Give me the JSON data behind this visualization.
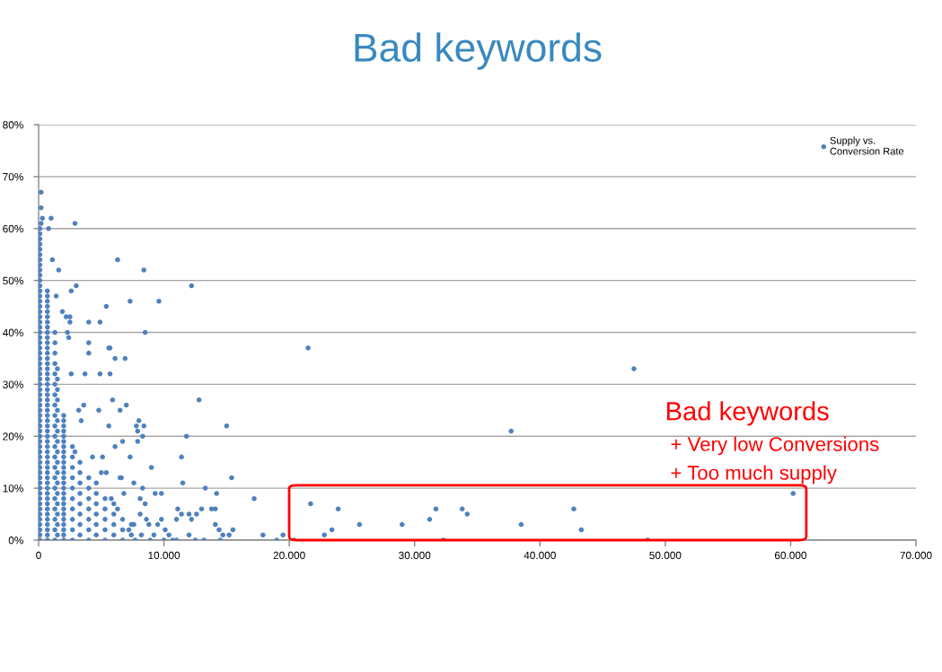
{
  "chart_data": {
    "type": "scatter",
    "title": "Bad keywords",
    "xlim": [
      0,
      70000
    ],
    "xticks": [
      0,
      {
        "value": 10000,
        "label": "10.000"
      },
      {
        "value": 20000,
        "label": "20.000"
      },
      {
        "value": 30000,
        "label": "30.000"
      },
      {
        "value": 40000,
        "label": "40.000"
      },
      {
        "value": 50000,
        "label": "50.000"
      },
      {
        "value": 60000,
        "label": "60.000"
      },
      {
        "value": 70000,
        "label": "70.000"
      }
    ],
    "ylim": [
      0,
      80
    ],
    "yticks": [
      {
        "value": 0,
        "label": "0%"
      },
      {
        "value": 10,
        "label": "10%"
      },
      {
        "value": 20,
        "label": "20%"
      },
      {
        "value": 30,
        "label": "30%"
      },
      {
        "value": 40,
        "label": "40%"
      },
      {
        "value": 50,
        "label": "50%"
      },
      {
        "value": 60,
        "label": "60%"
      },
      {
        "value": 70,
        "label": "70%"
      },
      {
        "value": 80,
        "label": "80%"
      }
    ],
    "grid": "y",
    "legend": "top right",
    "marker": "circle",
    "annotations": [
      "Bad keywords",
      "+ Very low Conversions",
      "+ Too much supply"
    ],
    "series": [
      {
        "name": "Supply vs.\nConversion Rate",
        "color": "#4f81bd",
        "x": [
          100,
          100,
          100,
          100,
          100,
          100,
          100,
          100,
          100,
          100,
          100,
          100,
          100,
          100,
          100,
          100,
          100,
          100,
          100,
          100,
          100,
          100,
          100,
          100,
          100,
          100,
          100,
          100,
          100,
          100,
          100,
          100,
          100,
          100,
          100,
          100,
          100,
          100,
          100,
          100,
          100,
          100,
          100,
          100,
          100,
          100,
          100,
          100,
          100,
          100,
          100,
          100,
          100,
          100,
          100,
          100,
          100,
          100,
          100,
          100,
          100,
          700,
          700,
          700,
          700,
          700,
          700,
          700,
          700,
          700,
          700,
          700,
          700,
          700,
          700,
          700,
          700,
          700,
          700,
          700,
          700,
          700,
          700,
          700,
          700,
          700,
          700,
          700,
          700,
          700,
          700,
          700,
          700,
          700,
          700,
          700,
          700,
          700,
          700,
          700,
          700,
          700,
          700,
          700,
          700,
          700,
          700,
          700,
          700,
          700,
          1300,
          1300,
          1300,
          1300,
          1300,
          1300,
          1300,
          1300,
          1300,
          1300,
          1300,
          1300,
          1300,
          1300,
          1300,
          1300,
          1300,
          1300,
          1300,
          1300,
          1300,
          1500,
          1500,
          1500,
          1500,
          1500,
          1500,
          1500,
          1500,
          1500,
          1500,
          1500,
          1500,
          1500,
          1500,
          1500,
          1500,
          1500,
          2000,
          2000,
          2000,
          2000,
          2000,
          2000,
          2000,
          2000,
          2000,
          2000,
          2000,
          2000,
          2000,
          2000,
          2000,
          2000,
          2000,
          2000,
          2000,
          2000,
          2000,
          2000,
          2000,
          2000,
          2000,
          2700,
          2700,
          2700,
          2700,
          2700,
          2700,
          2700,
          2700,
          2700,
          2700,
          3300,
          3300,
          3300,
          3300,
          3300,
          3300,
          3300,
          3300,
          4000,
          4000,
          4000,
          4000,
          4000,
          4000,
          4000,
          4600,
          4600,
          4600,
          4600,
          4600,
          4600,
          5300,
          5300,
          5300,
          5300,
          5300,
          6000,
          6000,
          6000,
          6000,
          6700,
          6700,
          6700,
          7400,
          7400,
          200,
          200,
          300,
          1000,
          2900,
          200,
          800,
          1100,
          6300,
          1600,
          8400,
          12200,
          3000,
          2600,
          1400,
          7300,
          9600,
          5400,
          1900,
          2200,
          2500,
          4000,
          4900,
          2500,
          8500,
          2300,
          2400,
          4000,
          4000,
          5600,
          5700,
          6100,
          6900,
          21500,
          47500,
          2600,
          3700,
          4900,
          5700,
          12800,
          5900,
          7000,
          3600,
          6500,
          4800,
          3200,
          3400,
          8000,
          7800,
          8400,
          5600,
          15000,
          7900,
          37700,
          8300,
          11800,
          6700,
          7900,
          6100,
          2900,
          11400,
          7300,
          5100,
          4300,
          9000,
          5000,
          5400,
          15400,
          6500,
          6600,
          11500,
          7600,
          13300,
          8300,
          9300,
          9800,
          14200,
          6800,
          17200,
          8100,
          8500,
          21700,
          11100,
          13000,
          13800,
          14100,
          23900,
          31700,
          33800,
          42700,
          11400,
          12000,
          12600,
          8100,
          34200,
          11000,
          12200,
          9800,
          8600,
          31200,
          14100,
          9500,
          8800,
          7600,
          25600,
          29000,
          38500,
          14400,
          15500,
          10100,
          23400,
          43300,
          14700,
          15200,
          17900,
          19500,
          10400,
          22800,
          19000,
          13200,
          14500,
          8900,
          10700,
          20400,
          32300,
          48600,
          60200,
          7200,
          8200,
          9200,
          10000,
          11000,
          12000,
          12500,
          6300,
          5800,
          7700
        ],
        "values": [
          0,
          1,
          2,
          3,
          4,
          5,
          6,
          7,
          8,
          9,
          10,
          11,
          12,
          13,
          14,
          15,
          16,
          17,
          18,
          19,
          20,
          21,
          22,
          23,
          24,
          25,
          26,
          27,
          28,
          29,
          30,
          31,
          32,
          33,
          34,
          35,
          36,
          37,
          38,
          39,
          40,
          41,
          42,
          43,
          44,
          45,
          46,
          47,
          48,
          49,
          50,
          51,
          52,
          53,
          54,
          55,
          56,
          57,
          58,
          59,
          60,
          0,
          1,
          2,
          3,
          4,
          5,
          6,
          7,
          8,
          9,
          10,
          11,
          12,
          13,
          14,
          15,
          16,
          17,
          18,
          19,
          20,
          21,
          22,
          23,
          24,
          25,
          26,
          27,
          28,
          29,
          30,
          31,
          32,
          33,
          34,
          35,
          36,
          37,
          38,
          39,
          40,
          41,
          42,
          43,
          44,
          45,
          46,
          47,
          48,
          0,
          2,
          4,
          6,
          8,
          10,
          12,
          14,
          16,
          18,
          20,
          22,
          24,
          26,
          28,
          30,
          32,
          34,
          36,
          38,
          40,
          1,
          3,
          5,
          7,
          9,
          11,
          13,
          15,
          17,
          19,
          21,
          23,
          25,
          27,
          29,
          31,
          33,
          0,
          1,
          2,
          3,
          4,
          5,
          6,
          7,
          8,
          9,
          10,
          11,
          12,
          13,
          14,
          15,
          16,
          17,
          18,
          19,
          20,
          21,
          22,
          23,
          24,
          0,
          2,
          4,
          6,
          8,
          10,
          12,
          14,
          16,
          18,
          1,
          3,
          5,
          7,
          9,
          11,
          13,
          15,
          0,
          2,
          4,
          6,
          8,
          10,
          12,
          1,
          3,
          5,
          7,
          9,
          11,
          0,
          2,
          4,
          6,
          8,
          1,
          3,
          5,
          7,
          0,
          2,
          4,
          1,
          3,
          67,
          64,
          62,
          62,
          61,
          61,
          60,
          54,
          54,
          52,
          52,
          49,
          49,
          48,
          47,
          46,
          46,
          45,
          44,
          43,
          43,
          42,
          42,
          42,
          40,
          40,
          39,
          38,
          36,
          37,
          37,
          35,
          35,
          37,
          33,
          32,
          32,
          32,
          32,
          27,
          27,
          26,
          26,
          25,
          25,
          25,
          23,
          23,
          22,
          22,
          22,
          22,
          21,
          21,
          20,
          20,
          19,
          19,
          18,
          17,
          16,
          16,
          16,
          16,
          14,
          13,
          13,
          12,
          12,
          12,
          11,
          11,
          10,
          10,
          9,
          9,
          9,
          9,
          8,
          8,
          7,
          7,
          6,
          6,
          6,
          6,
          6,
          6,
          6,
          6,
          5,
          5,
          5,
          5,
          5,
          4,
          4,
          4,
          4,
          4,
          3,
          3,
          3,
          3,
          3,
          3,
          3,
          2,
          2,
          2,
          2,
          2,
          1,
          1,
          1,
          1,
          1,
          1,
          0,
          0,
          0,
          0,
          0,
          0,
          0,
          0,
          9,
          2,
          1,
          1,
          0,
          0,
          1,
          0,
          6,
          8,
          0
        ]
      }
    ]
  }
}
